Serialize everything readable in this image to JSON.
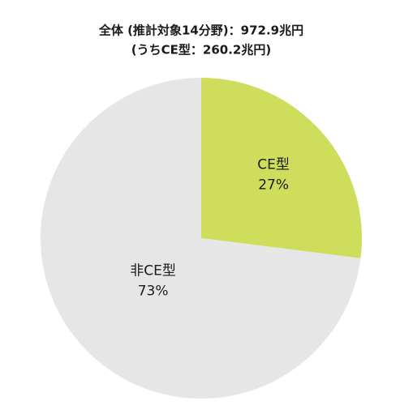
{
  "chart_data": {
    "type": "pie",
    "title": "全体 (推計対象14分野)：972.9兆円",
    "subtitle": "(うちCE型：260.2兆円)",
    "categories": [
      "CE型",
      "非CE型"
    ],
    "values": [
      27,
      73
    ],
    "value_labels": [
      "27%",
      "73%"
    ],
    "colors": [
      "#cfdd5c",
      "#e6e6e6"
    ]
  }
}
